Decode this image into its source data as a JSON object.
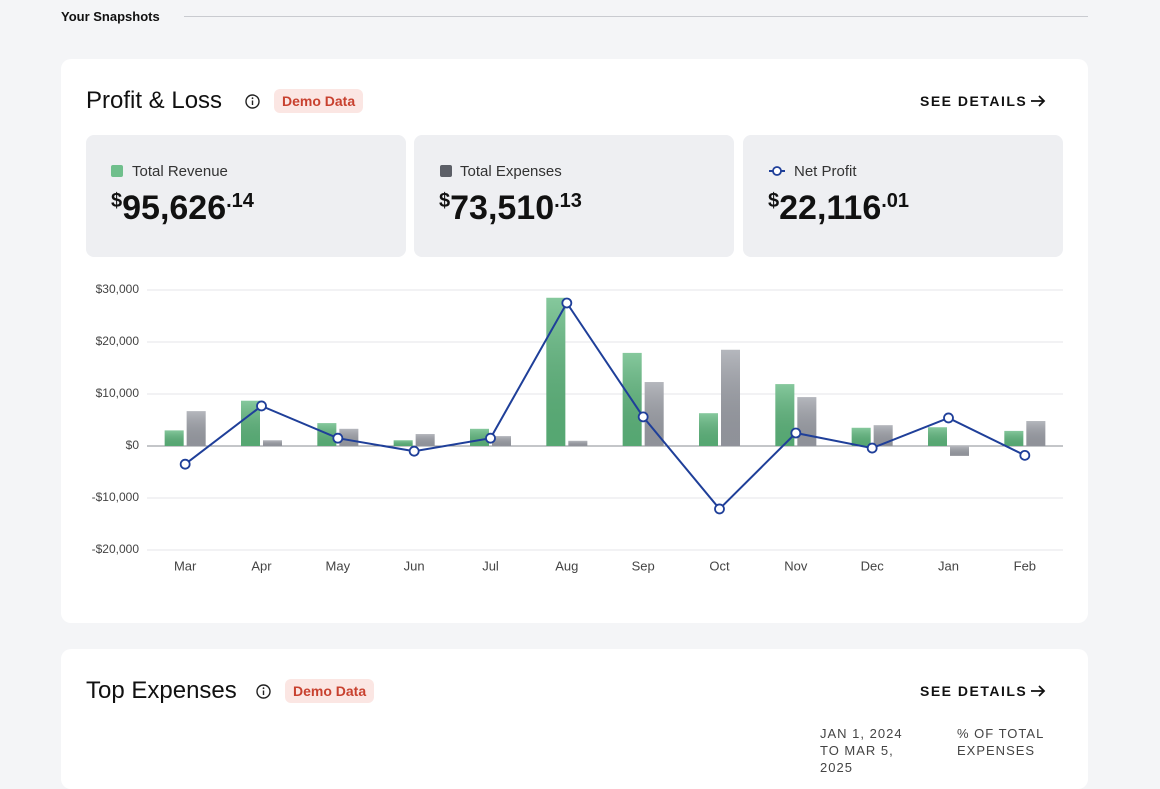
{
  "section_title": "Your Snapshots",
  "profit_loss": {
    "title": "Profit & Loss",
    "badge": "Demo Data",
    "link": "SEE DETAILS",
    "cards": [
      {
        "currency": "$",
        "whole": "95,626",
        "cents": ".14"
      },
      {
        "currency": "$",
        "whole": "73,510",
        "cents": ".13"
      },
      {
        "currency": "$",
        "whole": "22,116",
        "cents": ".01"
      }
    ]
  },
  "chart_data": {
    "type": "bar",
    "categories": [
      "Mar",
      "Apr",
      "May",
      "Jun",
      "Jul",
      "Aug",
      "Sep",
      "Oct",
      "Nov",
      "Dec",
      "Jan",
      "Feb"
    ],
    "series": [
      {
        "name": "Total Revenue",
        "type": "bar",
        "color": "#5db67c",
        "values": [
          3000,
          8700,
          4400,
          1100,
          3300,
          28500,
          17900,
          6300,
          11900,
          3500,
          3600,
          2900
        ]
      },
      {
        "name": "Total Expenses",
        "type": "bar",
        "color": "#9c9fa7",
        "values": [
          6700,
          1100,
          3300,
          2300,
          1900,
          1000,
          12300,
          18500,
          9400,
          4000,
          -1900,
          4800
        ]
      },
      {
        "name": "Net Profit",
        "type": "line",
        "color": "#1f3f99",
        "values": [
          -3500,
          7700,
          1500,
          -1000,
          1500,
          27500,
          5600,
          -12100,
          2500,
          -400,
          5400,
          -1800
        ]
      }
    ],
    "ylim": [
      -20000,
      30000
    ],
    "yticks": [
      {
        "value": -20000,
        "label": "-$20,000"
      },
      {
        "value": -10000,
        "label": "-$10,000"
      },
      {
        "value": 0,
        "label": "$0"
      },
      {
        "value": 10000,
        "label": "$10,000"
      },
      {
        "value": 20000,
        "label": "$20,000"
      },
      {
        "value": 30000,
        "label": "$30,000"
      }
    ],
    "grid": true
  },
  "top_expenses": {
    "title": "Top Expenses",
    "badge": "Demo Data",
    "link": "SEE DETAILS",
    "columns": [
      "JAN 1, 2024 TO MAR 5, 2025",
      "% OF TOTAL EXPENSES"
    ]
  }
}
